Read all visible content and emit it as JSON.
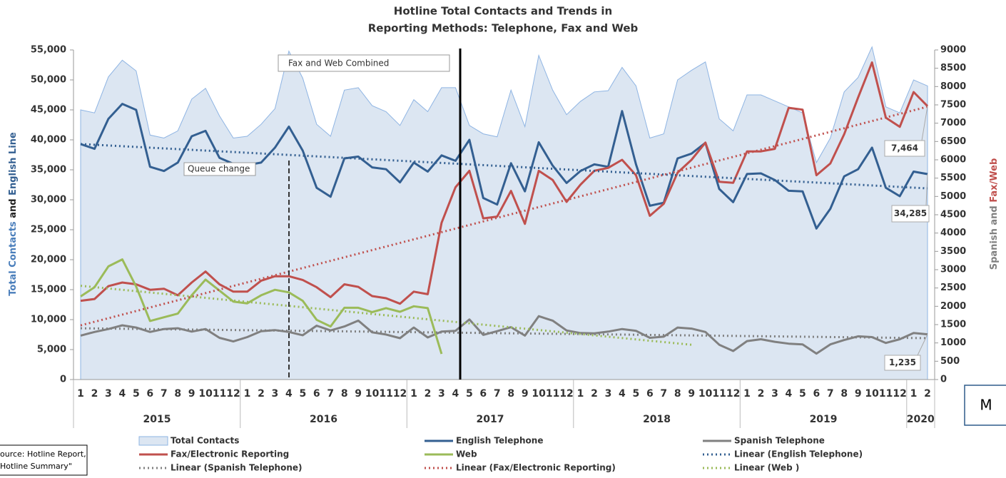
{
  "chart_data": {
    "type": "line",
    "title": [
      "Hotline Total Contacts and Trends in",
      "Reporting Methods: Telephone, Fax and Web"
    ],
    "y_label": [
      "Total Contacts",
      "and",
      "English Line"
    ],
    "y2_label": [
      "Spanish and",
      "Fax/Web"
    ],
    "categories": [
      "1",
      "2",
      "3",
      "4",
      "5",
      "6",
      "7",
      "8",
      "9",
      "10",
      "11",
      "12",
      "1",
      "2",
      "3",
      "4",
      "5",
      "6",
      "7",
      "8",
      "9",
      "10",
      "11",
      "12",
      "1",
      "2",
      "3",
      "4",
      "5",
      "6",
      "7",
      "8",
      "9",
      "10",
      "11",
      "12",
      "1",
      "2",
      "3",
      "4",
      "5",
      "6",
      "7",
      "8",
      "9",
      "10",
      "11",
      "12",
      "1",
      "2",
      "3",
      "4",
      "5",
      "6",
      "7",
      "8",
      "9",
      "10",
      "11",
      "12",
      "1",
      "2"
    ],
    "years": [
      "2015",
      "2016",
      "2017",
      "2018",
      "2019",
      "2020"
    ],
    "ylim": [
      0,
      55000
    ],
    "yticks": [
      0,
      {
        "value": 5000,
        "label": "5,000"
      },
      {
        "value": 10000,
        "label": "10,000"
      },
      {
        "value": 15000,
        "label": "15,000"
      },
      {
        "value": 20000,
        "label": "20,000"
      },
      {
        "value": 25000,
        "label": "25,000"
      },
      {
        "value": 30000,
        "label": "30,000"
      },
      {
        "value": 35000,
        "label": "35,000"
      },
      {
        "value": 40000,
        "label": "40,000"
      },
      {
        "value": 45000,
        "label": "45,000"
      },
      {
        "value": 50000,
        "label": "50,000"
      },
      {
        "value": 55000,
        "label": "55,000"
      }
    ],
    "y2lim": [
      0,
      9000
    ],
    "y2ticks": [
      0,
      500,
      1000,
      1500,
      2000,
      2500,
      3000,
      3500,
      4000,
      4500,
      5000,
      5500,
      6000,
      6500,
      7000,
      7500,
      8000,
      8500,
      9000
    ],
    "series": [
      {
        "name": "Total Contacts",
        "color": "#8eb4e3",
        "fill": "#dce6f2",
        "area": true,
        "values": [
          45000,
          44500,
          50500,
          53300,
          51500,
          40800,
          40300,
          41500,
          46800,
          48600,
          44000,
          40300,
          40600,
          42600,
          45200,
          54800,
          50300,
          42600,
          40600,
          48300,
          48700,
          45700,
          44700,
          42400,
          46700,
          44700,
          48700,
          48700,
          42400,
          41000,
          40500,
          48300,
          42200,
          54100,
          48300,
          44200,
          46400,
          48000,
          48200,
          52100,
          49000,
          40300,
          41000,
          50000,
          51600,
          53000,
          43500,
          41500,
          47500,
          47500,
          46500,
          45500,
          44500,
          36200,
          40300,
          48000,
          50400,
          55500,
          45500,
          44500,
          50000,
          49000
        ]
      },
      {
        "name": "English Telephone",
        "color": "#335f91",
        "values": [
          39300,
          38500,
          43500,
          46000,
          45000,
          35500,
          34800,
          36200,
          40600,
          41500,
          37000,
          36000,
          35800,
          36200,
          38700,
          42200,
          38200,
          32000,
          30500,
          36900,
          37200,
          35400,
          35100,
          32900,
          36200,
          34700,
          37400,
          36500,
          40000,
          30300,
          29200,
          36100,
          31400,
          39600,
          35700,
          32800,
          34800,
          35900,
          35500,
          44800,
          35900,
          29000,
          29500,
          36900,
          37700,
          39500,
          31800,
          29600,
          34300,
          34400,
          33300,
          31500,
          31400,
          25200,
          28500,
          33900,
          35100,
          38700,
          32000,
          30600,
          34700,
          34285
        ],
        "value_labels": [
          null,
          null,
          null,
          null,
          null,
          null,
          null,
          null,
          null,
          null,
          null,
          null,
          null,
          null,
          null,
          null,
          null,
          null,
          null,
          null,
          null,
          null,
          null,
          null,
          null,
          null,
          null,
          null,
          null,
          null,
          null,
          null,
          null,
          null,
          null,
          null,
          null,
          null,
          null,
          null,
          null,
          null,
          null,
          null,
          null,
          null,
          null,
          null,
          null,
          null,
          null,
          null,
          null,
          null,
          null,
          null,
          null,
          null,
          null,
          null,
          null,
          "34,285"
        ]
      },
      {
        "name": "Spanish Telephone",
        "color": "#808080",
        "axis": "y2",
        "values": [
          1200,
          1300,
          1380,
          1480,
          1420,
          1300,
          1380,
          1400,
          1310,
          1380,
          1140,
          1040,
          1160,
          1320,
          1350,
          1300,
          1210,
          1470,
          1340,
          1450,
          1610,
          1290,
          1230,
          1130,
          1420,
          1150,
          1310,
          1330,
          1640,
          1220,
          1320,
          1430,
          1200,
          1730,
          1610,
          1340,
          1270,
          1260,
          1310,
          1380,
          1330,
          1140,
          1170,
          1420,
          1390,
          1300,
          950,
          780,
          1050,
          1100,
          1030,
          980,
          960,
          710,
          960,
          1080,
          1180,
          1160,
          1000,
          1100,
          1270,
          1235
        ],
        "value_labels": [
          null,
          null,
          null,
          null,
          null,
          null,
          null,
          null,
          null,
          null,
          null,
          null,
          null,
          null,
          null,
          null,
          null,
          null,
          null,
          null,
          null,
          null,
          null,
          null,
          null,
          null,
          null,
          null,
          null,
          null,
          null,
          null,
          null,
          null,
          null,
          null,
          null,
          null,
          null,
          null,
          null,
          null,
          null,
          null,
          null,
          null,
          null,
          null,
          null,
          null,
          null,
          null,
          null,
          null,
          null,
          null,
          null,
          null,
          null,
          null,
          null,
          "1,235"
        ]
      },
      {
        "name": "Fax/Electronic Reporting",
        "color": "#c0504d",
        "axis": "y2",
        "values": [
          2150,
          2200,
          2550,
          2650,
          2600,
          2450,
          2480,
          2300,
          2650,
          2950,
          2600,
          2400,
          2400,
          2700,
          2820,
          2820,
          2720,
          2520,
          2250,
          2600,
          2530,
          2280,
          2220,
          2070,
          2400,
          2330,
          4280,
          5250,
          5700,
          4400,
          4450,
          5150,
          4250,
          5700,
          5450,
          4850,
          5320,
          5700,
          5780,
          6000,
          5580,
          4470,
          4800,
          5650,
          6000,
          6470,
          5400,
          5370,
          6230,
          6230,
          6300,
          7420,
          7370,
          5580,
          5900,
          6700,
          7700,
          8660,
          7150,
          6900,
          7850,
          7464
        ],
        "value_labels": [
          null,
          null,
          null,
          null,
          null,
          null,
          null,
          null,
          null,
          null,
          null,
          null,
          null,
          null,
          null,
          null,
          null,
          null,
          null,
          null,
          null,
          null,
          null,
          null,
          null,
          null,
          null,
          null,
          null,
          null,
          null,
          null,
          null,
          null,
          null,
          null,
          null,
          null,
          null,
          null,
          null,
          null,
          null,
          null,
          null,
          null,
          null,
          null,
          null,
          null,
          null,
          null,
          null,
          null,
          null,
          null,
          null,
          null,
          null,
          null,
          null,
          "7,464"
        ]
      },
      {
        "name": "Web",
        "color": "#9bbb59",
        "axis": "y2",
        "values": [
          2270,
          2520,
          3090,
          3280,
          2540,
          1600,
          1700,
          1800,
          2300,
          2730,
          2430,
          2130,
          2080,
          2300,
          2450,
          2380,
          2150,
          1630,
          1450,
          1960,
          1960,
          1840,
          1950,
          1850,
          2000,
          1950,
          700,
          null,
          null,
          null,
          null,
          null,
          null,
          null,
          null,
          null,
          null,
          null,
          null,
          null,
          null,
          null,
          null,
          null,
          null,
          null,
          null,
          null,
          null,
          null,
          null,
          null,
          null,
          null,
          null,
          null,
          null,
          null,
          null,
          null,
          null,
          null
        ]
      }
    ],
    "trendlines": [
      {
        "name": "Linear (English Telephone)",
        "color": "#335f91",
        "x": [
          0,
          61
        ],
        "values": [
          39300,
          31900
        ]
      },
      {
        "name": "Linear (Spanish Telephone)",
        "color": "#808080",
        "axis": "y2",
        "x": [
          0,
          61
        ],
        "values": [
          1400,
          1130
        ]
      },
      {
        "name": "Linear (Fax/Electronic Reporting)",
        "color": "#c0504d",
        "axis": "y2",
        "x": [
          0,
          61
        ],
        "values": [
          1480,
          7450
        ]
      },
      {
        "name": "Linear (Web )",
        "color": "#9bbb59",
        "axis": "y2",
        "x": [
          0,
          44
        ],
        "values": [
          2560,
          950
        ]
      }
    ],
    "annotations": [
      "Fax and Web Combined",
      "Queue change"
    ],
    "corner_mark": "M",
    "source": [
      "ource: Hotline Report,",
      "Hotline Summary\""
    ]
  }
}
